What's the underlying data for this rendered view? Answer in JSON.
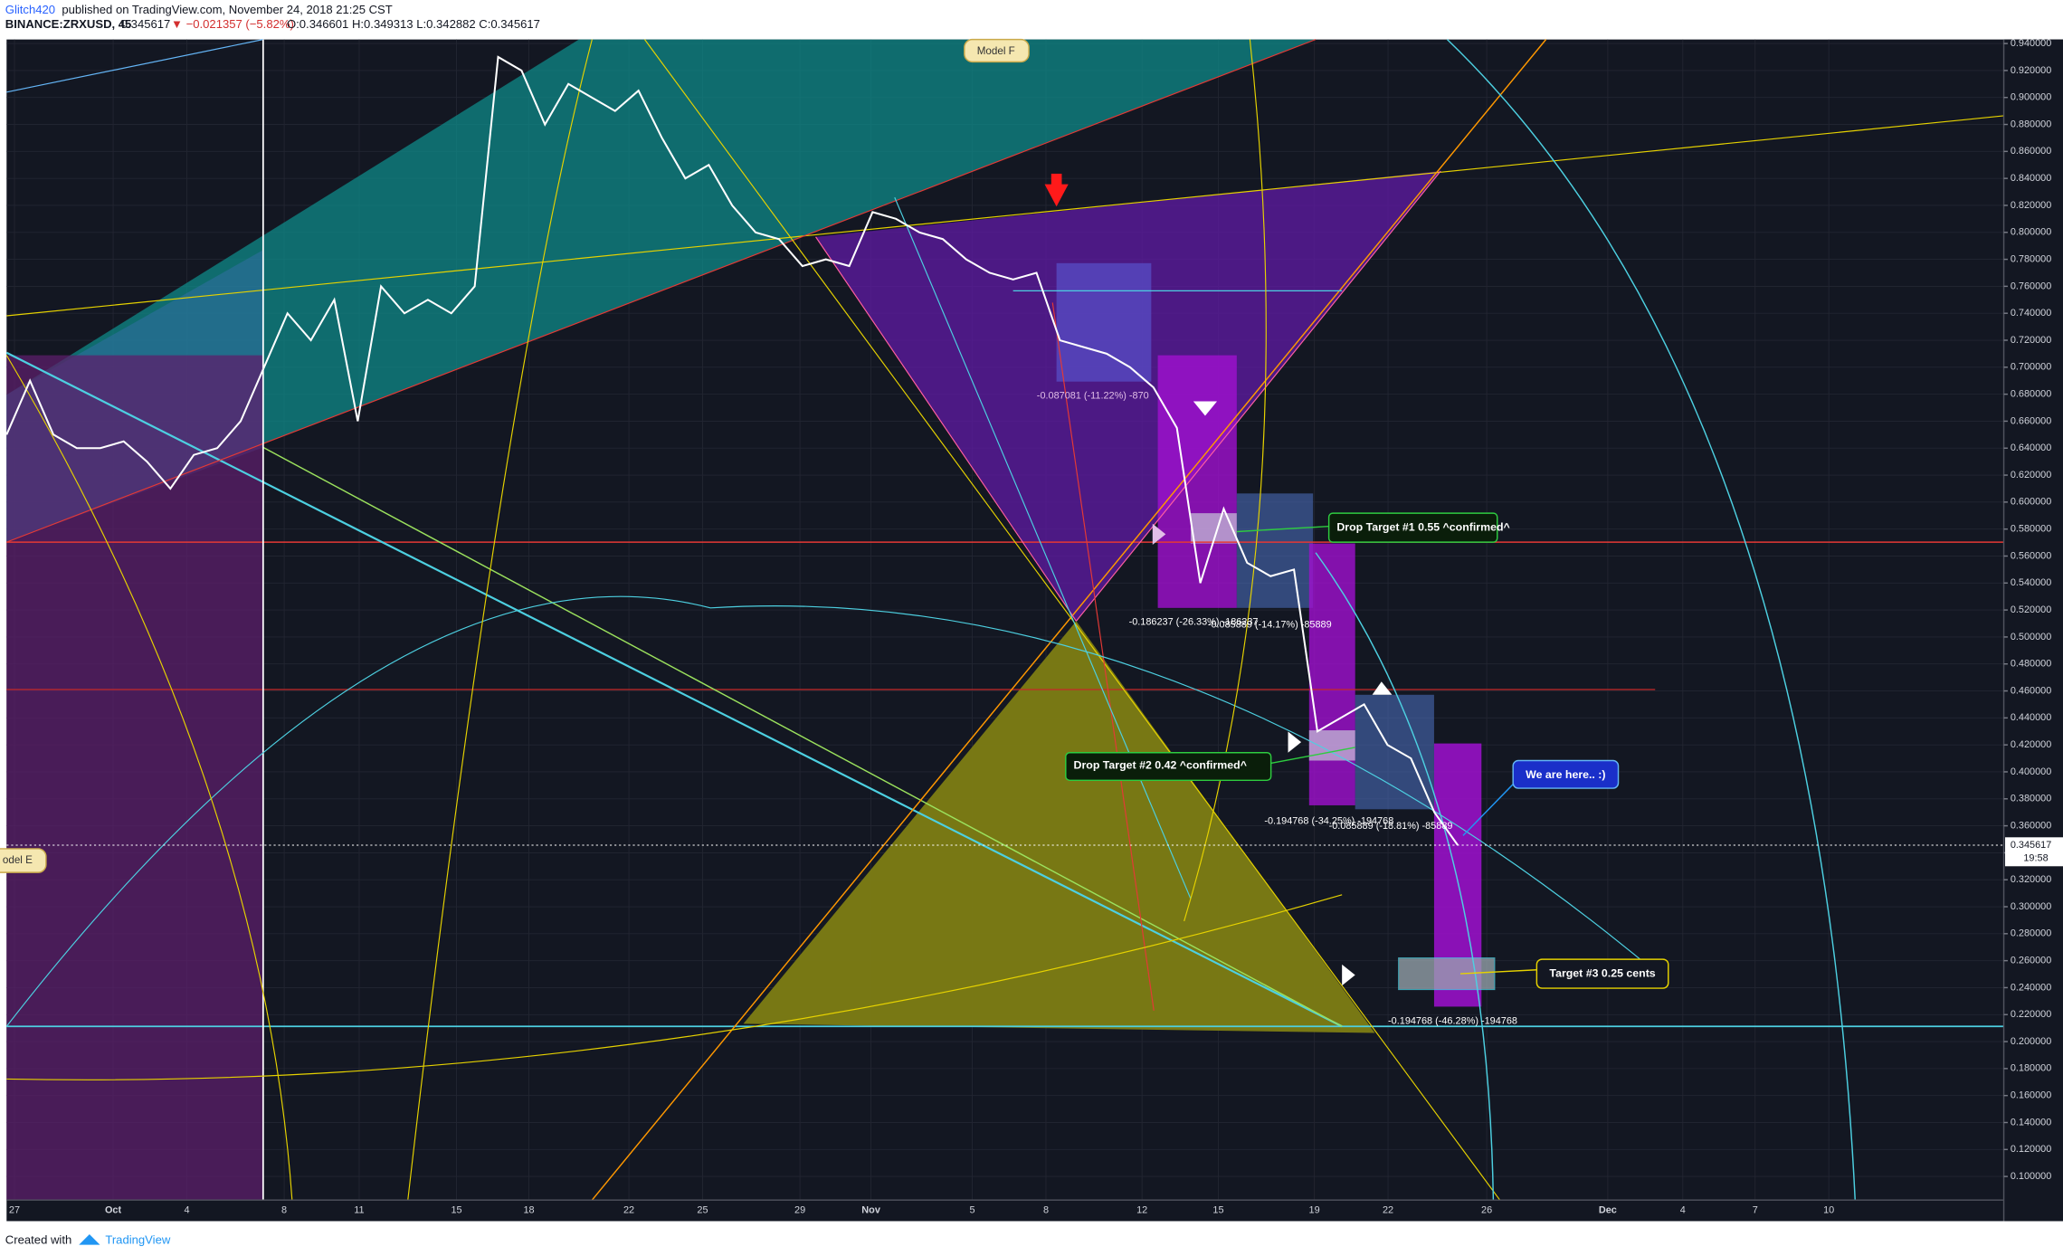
{
  "header": {
    "author": "Glitch420",
    "published": "published on TradingView.com, November 24, 2018 21:25 CST",
    "symbol": "BINANCE:ZRXUSD, 45",
    "last": "0.345617",
    "change": "▼ −0.021357 (−5.82%)",
    "ohlc": "O:0.346601 H:0.349313 L:0.342882 C:0.345617"
  },
  "footer": {
    "created": "Created with",
    "brand": "TradingView"
  },
  "chart_data": {
    "type": "line",
    "color": "#ffffff",
    "x_labels": [
      "27",
      "Oct",
      "4",
      "8",
      "11",
      "15",
      "18",
      "22",
      "25",
      "29",
      "Nov",
      "5",
      "8",
      "12",
      "15",
      "19",
      "22",
      "26",
      "Dec",
      "4",
      "7",
      "10"
    ],
    "values": [
      0.65,
      0.69,
      0.65,
      0.64,
      0.64,
      0.645,
      0.63,
      0.61,
      0.635,
      0.64,
      0.66,
      0.7,
      0.74,
      0.72,
      0.75,
      0.66,
      0.76,
      0.74,
      0.75,
      0.74,
      0.76,
      0.93,
      0.92,
      0.88,
      0.91,
      0.9,
      0.89,
      0.905,
      0.87,
      0.84,
      0.85,
      0.82,
      0.8,
      0.795,
      0.775,
      0.78,
      0.775,
      0.815,
      0.81,
      0.8,
      0.795,
      0.78,
      0.77,
      0.765,
      0.77,
      0.72,
      0.715,
      0.71,
      0.7,
      0.685,
      0.655,
      0.54,
      0.595,
      0.555,
      0.545,
      0.55,
      0.43,
      0.44,
      0.45,
      0.42,
      0.41,
      0.37,
      0.345617
    ],
    "ylim": [
      0.0825,
      0.943
    ],
    "yticks": [
      {
        "value": 0.94,
        "label": "0.940000"
      },
      {
        "value": 0.92,
        "label": "0.920000"
      },
      {
        "value": 0.9,
        "label": "0.900000"
      },
      {
        "value": 0.88,
        "label": "0.880000"
      },
      {
        "value": 0.86,
        "label": "0.860000"
      },
      {
        "value": 0.84,
        "label": "0.840000"
      },
      {
        "value": 0.82,
        "label": "0.820000"
      },
      {
        "value": 0.8,
        "label": "0.800000"
      },
      {
        "value": 0.78,
        "label": "0.780000"
      },
      {
        "value": 0.76,
        "label": "0.760000"
      },
      {
        "value": 0.74,
        "label": "0.740000"
      },
      {
        "value": 0.72,
        "label": "0.720000"
      },
      {
        "value": 0.7,
        "label": "0.700000"
      },
      {
        "value": 0.68,
        "label": "0.680000"
      },
      {
        "value": 0.66,
        "label": "0.660000"
      },
      {
        "value": 0.64,
        "label": "0.640000"
      },
      {
        "value": 0.62,
        "label": "0.620000"
      },
      {
        "value": 0.6,
        "label": "0.600000"
      },
      {
        "value": 0.58,
        "label": "0.580000"
      },
      {
        "value": 0.56,
        "label": "0.560000"
      },
      {
        "value": 0.54,
        "label": "0.540000"
      },
      {
        "value": 0.52,
        "label": "0.520000"
      },
      {
        "value": 0.5,
        "label": "0.500000"
      },
      {
        "value": 0.48,
        "label": "0.480000"
      },
      {
        "value": 0.46,
        "label": "0.460000"
      },
      {
        "value": 0.44,
        "label": "0.440000"
      },
      {
        "value": 0.42,
        "label": "0.420000"
      },
      {
        "value": 0.4,
        "label": "0.400000"
      },
      {
        "value": 0.38,
        "label": "0.380000"
      },
      {
        "value": 0.36,
        "label": "0.360000"
      },
      {
        "value": 0.34,
        "label": "0.340000"
      },
      {
        "value": 0.32,
        "label": "0.320000"
      },
      {
        "value": 0.3,
        "label": "0.300000"
      },
      {
        "value": 0.28,
        "label": "0.280000"
      },
      {
        "value": 0.26,
        "label": "0.260000"
      },
      {
        "value": 0.24,
        "label": "0.240000"
      },
      {
        "value": 0.22,
        "label": "0.220000"
      },
      {
        "value": 0.2,
        "label": "0.200000"
      },
      {
        "value": 0.18,
        "label": "0.180000"
      },
      {
        "value": 0.16,
        "label": "0.160000"
      },
      {
        "value": 0.14,
        "label": "0.140000"
      },
      {
        "value": 0.12,
        "label": "0.120000"
      },
      {
        "value": 0.1,
        "label": "0.100000"
      }
    ],
    "grid": true,
    "current_price": {
      "value": 0.345617,
      "label": "0.345617",
      "countdown": "19:58"
    },
    "annotations": {
      "model_f": "Model F",
      "model_e": "odel E",
      "drop1": "Drop Target #1 0.55 ^confirmed^",
      "drop2": "Drop Target #2 0.42 ^confirmed^",
      "here": "We are here.. :)",
      "target3": "Target #3 0.25 cents",
      "m1": "-0.087081 (-11.22%) -870",
      "m2": "-0.186237 (-26.33%) -186237",
      "m3": "-0.085889 (-14.17%) -85889",
      "m4": "-0.194768 (-34.25%) -194768",
      "m5": "-0.085889 (-18.81%) -85889",
      "m6": "-0.194768 (-46.28%) -194768"
    }
  }
}
